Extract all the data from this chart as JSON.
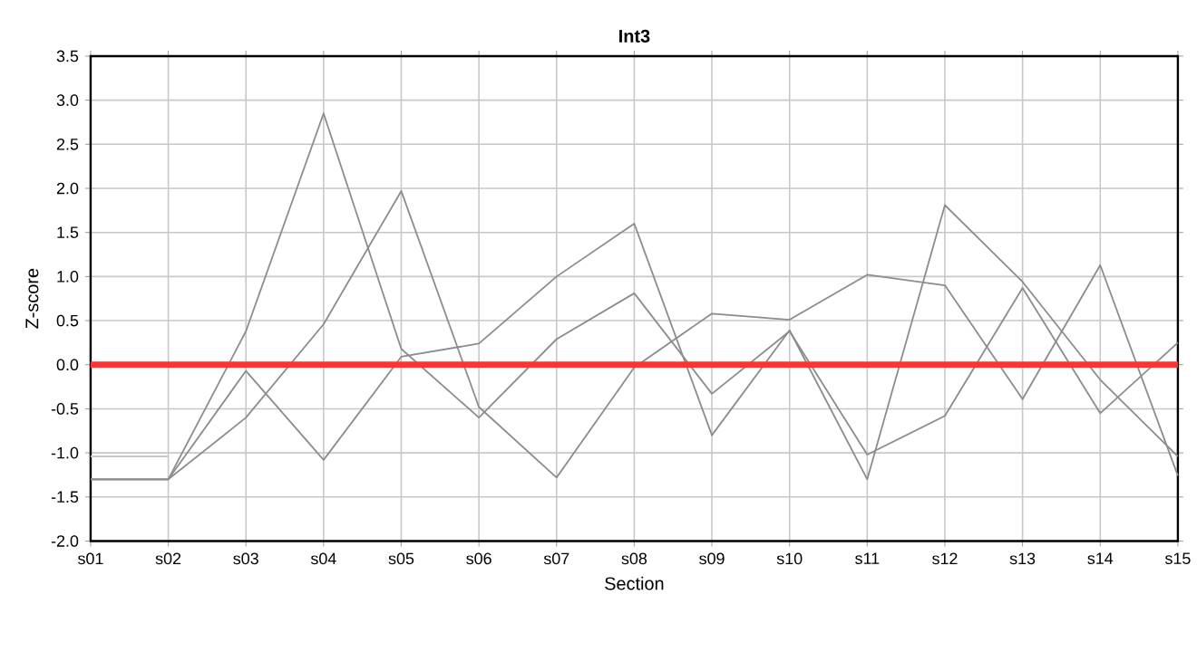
{
  "chart_data": {
    "type": "line",
    "title": "Int3",
    "xlabel": "Section",
    "ylabel": "Z-score",
    "categories": [
      "s01",
      "s02",
      "s03",
      "s04",
      "s05",
      "s06",
      "s07",
      "s08",
      "s09",
      "s10",
      "s11",
      "s12",
      "s13",
      "s14",
      "s15"
    ],
    "series": [
      {
        "color": "#8c8c8c",
        "values": [
          -1.3,
          -1.3,
          0.38,
          2.85,
          0.18,
          -0.6,
          0.29,
          0.81,
          -0.33,
          0.38,
          -1.02,
          -0.58,
          0.87,
          -0.55,
          0.25
        ]
      },
      {
        "color": "#8c8c8c",
        "values": [
          -1.3,
          -1.3,
          -0.6,
          0.46,
          1.97,
          -0.48,
          -1.28,
          -0.03,
          0.58,
          0.51,
          1.02,
          0.9,
          -0.39,
          1.13,
          -1.26
        ]
      },
      {
        "color": "#8c8c8c",
        "values": [
          -1.3,
          -1.3,
          -0.07,
          -1.08,
          0.09,
          0.24,
          1.0,
          1.6,
          -0.8,
          0.39,
          -1.3,
          1.81,
          0.94,
          -0.17,
          -1.04
        ]
      },
      {
        "color": "#c8c8c8",
        "values": [
          -1.04,
          -1.04,
          null,
          null,
          null,
          null,
          null,
          null,
          null,
          null,
          null,
          null,
          null,
          null,
          null
        ]
      }
    ],
    "ylim": [
      -2.0,
      3.5
    ],
    "yticks": [
      {
        "value": -2.0,
        "label": "-2.0"
      },
      {
        "value": -1.5,
        "label": "-1.5"
      },
      {
        "value": -1.0,
        "label": "-1.0"
      },
      {
        "value": -0.5,
        "label": "-0.5"
      },
      {
        "value": 0.0,
        "label": "0.0"
      },
      {
        "value": 0.5,
        "label": "0.5"
      },
      {
        "value": 1.0,
        "label": "1.0"
      },
      {
        "value": 1.5,
        "label": "1.5"
      },
      {
        "value": 2.0,
        "label": "2.0"
      },
      {
        "value": 2.5,
        "label": "2.5"
      },
      {
        "value": 3.0,
        "label": "3.0"
      },
      {
        "value": 3.5,
        "label": "3.5"
      }
    ],
    "ref_lines": [
      {
        "axis": "y",
        "value": 0.0,
        "color": "#ff3333"
      }
    ],
    "grid": true,
    "marker": "none",
    "line_style": "solid"
  }
}
